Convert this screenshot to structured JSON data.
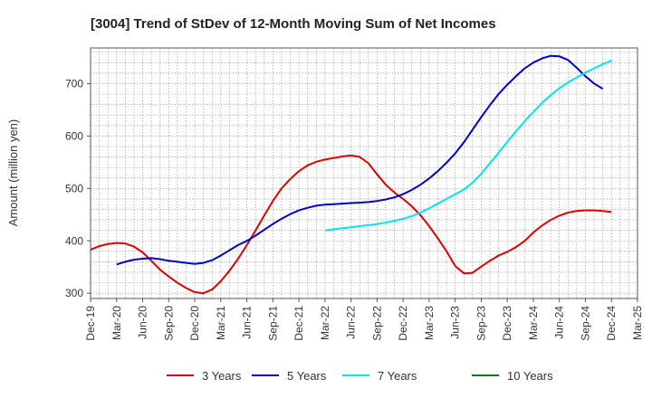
{
  "chart_data": {
    "type": "line",
    "title": "[3004]  Trend of StDev of 12-Month Moving Sum of Net Incomes",
    "xlabel": "",
    "ylabel": "Amount (million yen)",
    "ylim": [
      290,
      768
    ],
    "yticks": [
      300,
      400,
      500,
      600,
      700
    ],
    "xlim": [
      "2019-12",
      "2025-03"
    ],
    "xtick_labels": [
      "Dec-19",
      "Mar-20",
      "Jun-20",
      "Sep-20",
      "Dec-20",
      "Mar-21",
      "Jun-21",
      "Sep-21",
      "Dec-21",
      "Mar-22",
      "Jun-22",
      "Sep-22",
      "Dec-22",
      "Mar-23",
      "Jun-23",
      "Sep-23",
      "Dec-23",
      "Mar-24",
      "Jun-24",
      "Sep-24",
      "Dec-24",
      "Mar-25"
    ],
    "grid": true,
    "legend_position": "bottom",
    "series": [
      {
        "name": "3 Years",
        "color": "#e00000",
        "points": [
          [
            "2019-12",
            383
          ],
          [
            "2020-01",
            390
          ],
          [
            "2020-02",
            394
          ],
          [
            "2020-03",
            396
          ],
          [
            "2020-04",
            395
          ],
          [
            "2020-05",
            389
          ],
          [
            "2020-06",
            378
          ],
          [
            "2020-07",
            362
          ],
          [
            "2020-08",
            345
          ],
          [
            "2020-09",
            332
          ],
          [
            "2020-10",
            320
          ],
          [
            "2020-11",
            310
          ],
          [
            "2020-12",
            302
          ],
          [
            "2021-01",
            300
          ],
          [
            "2021-02",
            307
          ],
          [
            "2021-03",
            323
          ],
          [
            "2021-04",
            343
          ],
          [
            "2021-05",
            366
          ],
          [
            "2021-06",
            392
          ],
          [
            "2021-07",
            420
          ],
          [
            "2021-08",
            448
          ],
          [
            "2021-09",
            476
          ],
          [
            "2021-10",
            500
          ],
          [
            "2021-11",
            518
          ],
          [
            "2021-12",
            533
          ],
          [
            "2022-01",
            544
          ],
          [
            "2022-02",
            551
          ],
          [
            "2022-03",
            555
          ],
          [
            "2022-04",
            558
          ],
          [
            "2022-05",
            561
          ],
          [
            "2022-06",
            563
          ],
          [
            "2022-07",
            560
          ],
          [
            "2022-08",
            548
          ],
          [
            "2022-09",
            527
          ],
          [
            "2022-10",
            507
          ],
          [
            "2022-11",
            492
          ],
          [
            "2022-12",
            480
          ],
          [
            "2023-01",
            466
          ],
          [
            "2023-02",
            449
          ],
          [
            "2023-03",
            428
          ],
          [
            "2023-04",
            405
          ],
          [
            "2023-05",
            380
          ],
          [
            "2023-06",
            352
          ],
          [
            "2023-07",
            338
          ],
          [
            "2023-08",
            339
          ],
          [
            "2023-09",
            351
          ],
          [
            "2023-10",
            362
          ],
          [
            "2023-11",
            372
          ],
          [
            "2023-12",
            379
          ],
          [
            "2024-01",
            388
          ],
          [
            "2024-02",
            400
          ],
          [
            "2024-03",
            416
          ],
          [
            "2024-04",
            429
          ],
          [
            "2024-05",
            440
          ],
          [
            "2024-06",
            448
          ],
          [
            "2024-07",
            454
          ],
          [
            "2024-08",
            457
          ],
          [
            "2024-09",
            458
          ],
          [
            "2024-10",
            458
          ],
          [
            "2024-11",
            457
          ],
          [
            "2024-12",
            455
          ]
        ]
      },
      {
        "name": "5 Years",
        "color": "#0000cc",
        "points": [
          [
            "2020-03",
            355
          ],
          [
            "2020-04",
            360
          ],
          [
            "2020-05",
            364
          ],
          [
            "2020-06",
            366
          ],
          [
            "2020-07",
            367
          ],
          [
            "2020-08",
            365
          ],
          [
            "2020-09",
            362
          ],
          [
            "2020-10",
            360
          ],
          [
            "2020-11",
            358
          ],
          [
            "2020-12",
            356
          ],
          [
            "2021-01",
            358
          ],
          [
            "2021-02",
            363
          ],
          [
            "2021-03",
            372
          ],
          [
            "2021-04",
            382
          ],
          [
            "2021-05",
            392
          ],
          [
            "2021-06",
            400
          ],
          [
            "2021-07",
            410
          ],
          [
            "2021-08",
            421
          ],
          [
            "2021-09",
            432
          ],
          [
            "2021-10",
            442
          ],
          [
            "2021-11",
            451
          ],
          [
            "2021-12",
            458
          ],
          [
            "2022-01",
            463
          ],
          [
            "2022-02",
            467
          ],
          [
            "2022-03",
            469
          ],
          [
            "2022-04",
            470
          ],
          [
            "2022-05",
            471
          ],
          [
            "2022-06",
            472
          ],
          [
            "2022-07",
            473
          ],
          [
            "2022-08",
            474
          ],
          [
            "2022-09",
            476
          ],
          [
            "2022-10",
            479
          ],
          [
            "2022-11",
            483
          ],
          [
            "2022-12",
            489
          ],
          [
            "2023-01",
            497
          ],
          [
            "2023-02",
            507
          ],
          [
            "2023-03",
            519
          ],
          [
            "2023-04",
            533
          ],
          [
            "2023-05",
            549
          ],
          [
            "2023-06",
            567
          ],
          [
            "2023-07",
            588
          ],
          [
            "2023-08",
            612
          ],
          [
            "2023-09",
            636
          ],
          [
            "2023-10",
            659
          ],
          [
            "2023-11",
            680
          ],
          [
            "2023-12",
            698
          ],
          [
            "2024-01",
            714
          ],
          [
            "2024-02",
            729
          ],
          [
            "2024-03",
            740
          ],
          [
            "2024-04",
            748
          ],
          [
            "2024-05",
            753
          ],
          [
            "2024-06",
            752
          ],
          [
            "2024-07",
            745
          ],
          [
            "2024-08",
            730
          ],
          [
            "2024-09",
            714
          ],
          [
            "2024-10",
            700
          ],
          [
            "2024-11",
            690
          ]
        ]
      },
      {
        "name": "7 Years",
        "color": "#00e5ee",
        "points": [
          [
            "2022-03",
            420
          ],
          [
            "2022-04",
            422
          ],
          [
            "2022-05",
            424
          ],
          [
            "2022-06",
            426
          ],
          [
            "2022-07",
            428
          ],
          [
            "2022-08",
            430
          ],
          [
            "2022-09",
            432
          ],
          [
            "2022-10",
            435
          ],
          [
            "2022-11",
            438
          ],
          [
            "2022-12",
            442
          ],
          [
            "2023-01",
            447
          ],
          [
            "2023-02",
            454
          ],
          [
            "2023-03",
            462
          ],
          [
            "2023-04",
            471
          ],
          [
            "2023-05",
            480
          ],
          [
            "2023-06",
            489
          ],
          [
            "2023-07",
            498
          ],
          [
            "2023-08",
            511
          ],
          [
            "2023-09",
            528
          ],
          [
            "2023-10",
            548
          ],
          [
            "2023-11",
            568
          ],
          [
            "2023-12",
            589
          ],
          [
            "2024-01",
            609
          ],
          [
            "2024-02",
            628
          ],
          [
            "2024-03",
            646
          ],
          [
            "2024-04",
            663
          ],
          [
            "2024-05",
            678
          ],
          [
            "2024-06",
            691
          ],
          [
            "2024-07",
            702
          ],
          [
            "2024-08",
            712
          ],
          [
            "2024-09",
            721
          ],
          [
            "2024-10",
            729
          ],
          [
            "2024-11",
            737
          ],
          [
            "2024-12",
            744
          ]
        ]
      },
      {
        "name": "10 Years",
        "color": "#008000",
        "points": []
      }
    ]
  }
}
